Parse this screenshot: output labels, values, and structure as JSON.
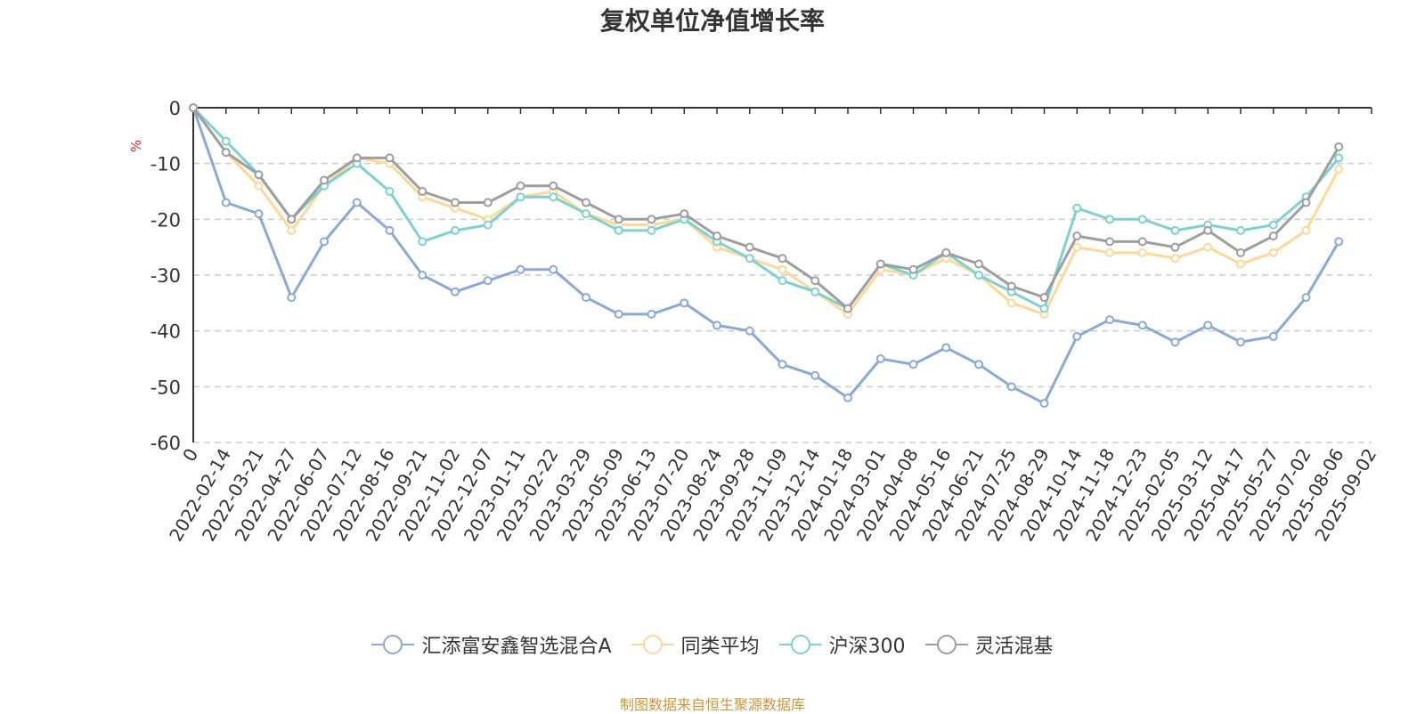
{
  "title": "复权单位净值增长率",
  "source_note": "制图数据来自恒生聚源数据库",
  "chart_data": {
    "type": "line",
    "ylabel": "%",
    "ylim": [
      -60,
      0
    ],
    "yticks": [
      "0",
      "-10",
      "-20",
      "-30",
      "-40",
      "-50",
      "-60"
    ],
    "grid": true,
    "legend_position": "bottom",
    "x_origin_label": "0",
    "categories": [
      "2022-02-14",
      "2022-03-21",
      "2022-04-27",
      "2022-06-07",
      "2022-07-12",
      "2022-08-16",
      "2022-09-21",
      "2022-11-02",
      "2022-12-07",
      "2023-01-11",
      "2023-02-22",
      "2023-03-29",
      "2023-05-09",
      "2023-06-13",
      "2023-07-20",
      "2023-08-24",
      "2023-09-28",
      "2023-11-09",
      "2023-12-14",
      "2024-01-18",
      "2024-03-01",
      "2024-04-08",
      "2024-05-16",
      "2024-06-21",
      "2024-07-25",
      "2024-08-29",
      "2024-10-14",
      "2024-11-18",
      "2024-12-23",
      "2025-02-05",
      "2025-03-12",
      "2025-04-17",
      "2025-05-27",
      "2025-07-02",
      "2025-08-06",
      "2025-09-02"
    ],
    "series": [
      {
        "name": "汇添富安鑫智选混合A",
        "color": "#8aa9d8",
        "values": [
          0,
          -17,
          -19,
          -34,
          -24,
          -17,
          -22,
          -30,
          -33,
          -31,
          -29,
          -29,
          -34,
          -37,
          -37,
          -35,
          -39,
          -40,
          -46,
          -48,
          -52,
          -45,
          -46,
          -43,
          -46,
          -50,
          -53,
          -41,
          -38,
          -39,
          -42,
          -39,
          -42,
          -41,
          -34,
          -24
        ]
      },
      {
        "name": "同类平均",
        "color": "#fdd898",
        "values": [
          0,
          -8,
          -14,
          -22,
          -14,
          -9,
          -10,
          -16,
          -18,
          -20,
          -16,
          -15,
          -19,
          -21,
          -21,
          -20,
          -25,
          -27,
          -29,
          -33,
          -37,
          -29,
          -30,
          -27,
          -30,
          -35,
          -37,
          -25,
          -26,
          -26,
          -27,
          -25,
          -28,
          -26,
          -22,
          -11
        ]
      },
      {
        "name": "沪深300",
        "color": "#7fd1d1",
        "values": [
          0,
          -6,
          -12,
          -20,
          -14,
          -10,
          -15,
          -24,
          -22,
          -21,
          -16,
          -16,
          -19,
          -22,
          -22,
          -20,
          -24,
          -27,
          -31,
          -33,
          -36,
          -28,
          -30,
          -26,
          -30,
          -33,
          -36,
          -18,
          -20,
          -20,
          -22,
          -21,
          -22,
          -21,
          -16,
          -9
        ]
      },
      {
        "name": "灵活混基",
        "color": "#9e9e9e",
        "values": [
          0,
          -8,
          -12,
          -20,
          -13,
          -9,
          -9,
          -15,
          -17,
          -17,
          -14,
          -14,
          -17,
          -20,
          -20,
          -19,
          -23,
          -25,
          -27,
          -31,
          -36,
          -28,
          -29,
          -26,
          -28,
          -32,
          -34,
          -23,
          -24,
          -24,
          -25,
          -22,
          -26,
          -23,
          -17,
          -7
        ]
      }
    ]
  }
}
